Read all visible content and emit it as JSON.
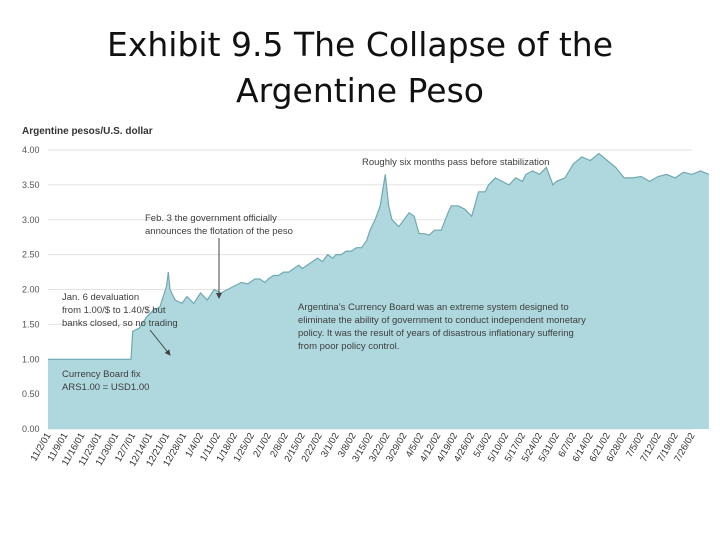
{
  "slide": {
    "title_line1": "Exhibit 9.5  The Collapse of the",
    "title_line2": "Argentine Peso"
  },
  "chart_data": {
    "type": "area",
    "title": "",
    "ylabel": "Argentine pesos/U.S. dollar",
    "xlabel": "",
    "ylim": [
      0,
      4
    ],
    "y_ticks": [
      "0.00",
      "0.50",
      "1.00",
      "1.50",
      "2.00",
      "2.50",
      "3.00",
      "3.50",
      "4.00"
    ],
    "grid": true,
    "fill_color": "#aed8dd",
    "line_color": "#6fa9b1",
    "categories": [
      "11/2/01",
      "11/9/01",
      "11/16/01",
      "11/23/01",
      "11/30/01",
      "12/7/01",
      "12/14/01",
      "12/21/01",
      "12/28/01",
      "1/4/02",
      "1/11/02",
      "1/18/02",
      "1/25/02",
      "2/1/02",
      "2/8/02",
      "2/15/02",
      "2/22/02",
      "3/1/02",
      "3/8/02",
      "3/15/02",
      "3/22/02",
      "3/29/02",
      "4/5/02",
      "4/12/02",
      "4/19/02",
      "4/26/02",
      "5/3/02",
      "5/10/02",
      "5/17/02",
      "5/24/02",
      "5/31/02",
      "6/7/02",
      "6/14/02",
      "6/21/02",
      "6/28/02",
      "7/5/02",
      "7/12/02",
      "7/19/02",
      "7/26/02"
    ],
    "series": [
      {
        "x": [
          0,
          4.9,
          5,
          5.4,
          5.8,
          6.2,
          6.6,
          7.0,
          7.1,
          7.2,
          7.5,
          7.9,
          8.2,
          8.6,
          9.0,
          9.4,
          9.8,
          10.2,
          10.6,
          11.0,
          11.4,
          11.8,
          12.2,
          12.5,
          12.8,
          13.0,
          13.3,
          13.6,
          13.9,
          14.2,
          14.5,
          14.8,
          15.0,
          15.3,
          15.6,
          15.9,
          16.2,
          16.5,
          16.8,
          17.0,
          17.3,
          17.6,
          17.9,
          18.2,
          18.5,
          18.8,
          19.0,
          19.3,
          19.6,
          19.9,
          20.1,
          20.3,
          20.5,
          20.7,
          21.0,
          21.3,
          21.6,
          21.9,
          22.2,
          22.5,
          22.8,
          23.2,
          23.6,
          23.8,
          24.2,
          24.6,
          25.0,
          25.4,
          25.8,
          26.0,
          26.4,
          26.8,
          27.2,
          27.6,
          28.0,
          28.2,
          28.6,
          29.0,
          29.4,
          29.8,
          30.0,
          30.5,
          31.0,
          31.5,
          32.0,
          32.5,
          33.0,
          33.5,
          34.0,
          34.5,
          35.0,
          35.5,
          36.0,
          36.5,
          37.0,
          37.5,
          38.0,
          38.5,
          39
        ],
        "y": [
          1.0,
          1.0,
          1.4,
          1.45,
          1.6,
          1.7,
          1.75,
          2.05,
          2.25,
          2.0,
          1.85,
          1.8,
          1.9,
          1.8,
          1.95,
          1.85,
          2.0,
          1.95,
          2.0,
          2.05,
          2.1,
          2.08,
          2.15,
          2.15,
          2.1,
          2.15,
          2.2,
          2.2,
          2.25,
          2.25,
          2.3,
          2.35,
          2.3,
          2.35,
          2.4,
          2.45,
          2.4,
          2.5,
          2.45,
          2.5,
          2.5,
          2.55,
          2.55,
          2.6,
          2.6,
          2.7,
          2.85,
          3.0,
          3.2,
          3.65,
          3.2,
          3.0,
          2.95,
          2.9,
          3.0,
          3.1,
          3.05,
          2.8,
          2.8,
          2.78,
          2.85,
          2.85,
          3.1,
          3.2,
          3.2,
          3.15,
          3.05,
          3.4,
          3.4,
          3.5,
          3.6,
          3.55,
          3.5,
          3.6,
          3.55,
          3.65,
          3.7,
          3.65,
          3.75,
          3.5,
          3.55,
          3.6,
          3.8,
          3.9,
          3.85,
          3.95,
          3.85,
          3.75,
          3.6,
          3.6,
          3.62,
          3.55,
          3.62,
          3.65,
          3.6,
          3.68,
          3.65,
          3.7,
          3.65
        ]
      }
    ],
    "annotations": {
      "feb3_line1": "Feb. 3 the government officially",
      "feb3_line2": "announces the flotation of the peso",
      "jan6_line1": "Jan. 6 devaluation",
      "jan6_line2": "from 1.00/$ to 1.40/$ but",
      "jan6_line3": "banks closed, so no trading",
      "board_line1": "Currency Board fix",
      "board_line2": "ARS1.00 = USD1.00",
      "six_months": "Roughly six months pass before stabilization",
      "cb_line1": "Argentina’s Currency Board was an extreme system designed to",
      "cb_line2": "eliminate the ability of government to conduct independent monetary",
      "cb_line3": "policy. It was the result of years of disastrous inflationary suffering",
      "cb_line4": "from poor policy control."
    }
  }
}
